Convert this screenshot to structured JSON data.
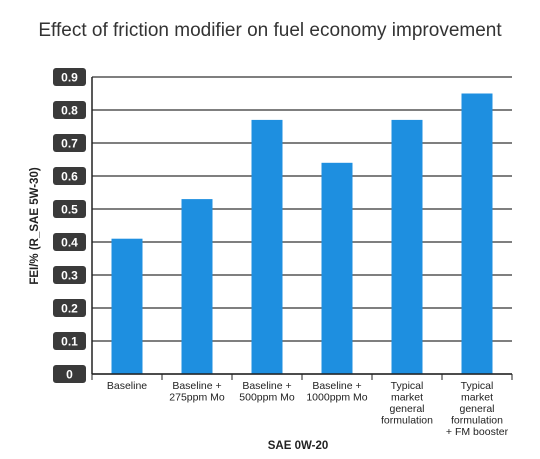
{
  "chart_data": {
    "type": "bar",
    "title": "Effect of friction modifier on fuel economy improvement",
    "xlabel": "SAE 0W-20",
    "ylabel": "FEI/% (R_SAE 5W-30)",
    "categories": [
      "Baseline",
      "Baseline + 275ppm Mo",
      "Baseline + 500ppm Mo",
      "Baseline + 1000ppm Mo",
      "Typical market general formulation",
      "Typical market general formulation + FM booster"
    ],
    "category_lines": [
      [
        "Baseline"
      ],
      [
        "Baseline +",
        "275ppm Mo"
      ],
      [
        "Baseline +",
        "500ppm Mo"
      ],
      [
        "Baseline +",
        "1000ppm Mo"
      ],
      [
        "Typical",
        "market",
        "general",
        "formulation"
      ],
      [
        "Typical",
        "market",
        "general",
        "formulation",
        "+ FM booster"
      ]
    ],
    "values": [
      0.41,
      0.53,
      0.77,
      0.64,
      0.77,
      0.85
    ],
    "ylim": [
      0,
      0.9
    ],
    "yticks": [
      "0",
      "0.1",
      "0.2",
      "0.3",
      "0.4",
      "0.5",
      "0.6",
      "0.7",
      "0.8",
      "0.9"
    ],
    "grid": true,
    "legend": "none",
    "bar_color": "#1e8fe0",
    "tick_box_color": "#3a3a3a",
    "grid_color": "#333333"
  }
}
